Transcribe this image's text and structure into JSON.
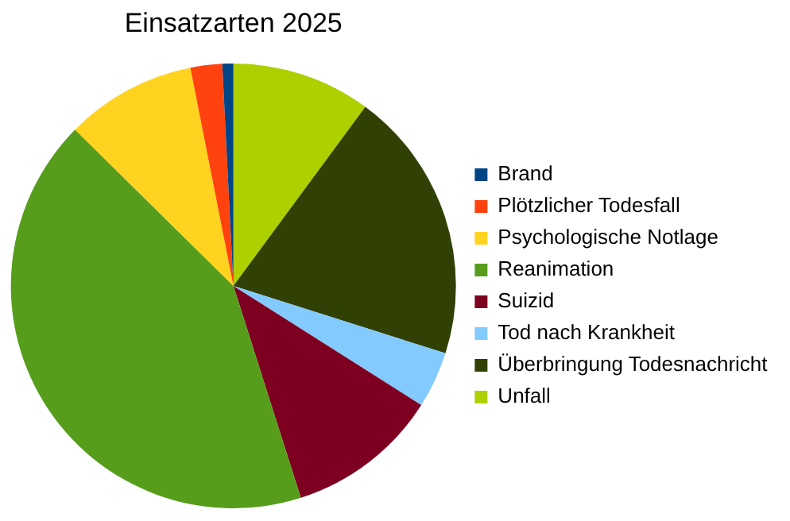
{
  "chart_data": {
    "type": "pie",
    "title": "Einsatzarten 2025",
    "categories": [
      "Brand",
      "Plötzlicher Todesfall",
      "Psychologische Notlage",
      "Reanimation",
      "Suizid",
      "Tod nach Krankheit",
      "Überbringung Todesnachricht",
      "Unfall"
    ],
    "values": [
      0.8,
      2.3,
      9.5,
      42.3,
      11.1,
      4.1,
      19.8,
      10.1
    ],
    "colors": [
      "#004586",
      "#ff420e",
      "#ffd320",
      "#579d1c",
      "#7e0021",
      "#83caff",
      "#314004",
      "#aecf00"
    ],
    "legend": "right"
  }
}
